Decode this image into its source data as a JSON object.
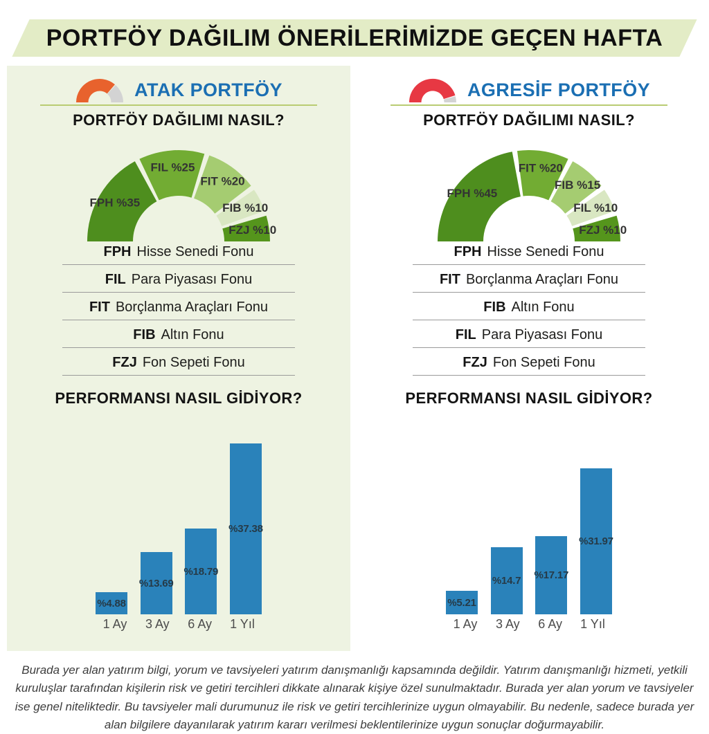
{
  "banner": {
    "title": "PORTFÖY DAĞILIM ÖNERİLERİMİZDE GEÇEN HAFTA"
  },
  "colors": {
    "banner_bg": "#e3ecc6",
    "panel_bg": "#eef3e2",
    "header_blue": "#1b6fb3",
    "divider": "#b9cc72",
    "bar_blue": "#2a82ba",
    "atak_gauge": "#e8622d",
    "agresif_gauge": "#e73843",
    "gauge_track": "#d3d3d3",
    "donut_palette": [
      "#4e8e1e",
      "#72ac33",
      "#a5cc71",
      "#d9e7c2",
      "#55951c"
    ]
  },
  "portfolios": [
    {
      "title": "ATAK PORTFÖY",
      "allocation_heading": "PORTFÖY DAĞILIMI NASIL?",
      "performance_heading": "PERFORMANSI NASIL GİDİYOR?",
      "gauge": {
        "filled_percent": 73,
        "fill_color": "#e8622d",
        "track_color": "#d3d3d3"
      },
      "legend": [
        {
          "code": "FPH",
          "name": "Hisse Senedi Fonu"
        },
        {
          "code": "FIL",
          "name": "Para Piyasası Fonu"
        },
        {
          "code": "FIT",
          "name": "Borçlanma Araçları Fonu"
        },
        {
          "code": "FIB",
          "name": "Altın Fonu"
        },
        {
          "code": "FZJ",
          "name": "Fon Sepeti Fonu"
        }
      ]
    },
    {
      "title": "AGRESİF PORTFÖY",
      "allocation_heading": "PORTFÖY DAĞILIMI NASIL?",
      "performance_heading": "PERFORMANSI NASIL GİDİYOR?",
      "gauge": {
        "filled_percent": 91,
        "fill_color": "#e73843",
        "track_color": "#d3d3d3"
      },
      "legend": [
        {
          "code": "FPH",
          "name": "Hisse Senedi Fonu"
        },
        {
          "code": "FIT",
          "name": "Borçlanma Araçları Fonu"
        },
        {
          "code": "FIB",
          "name": "Altın Fonu"
        },
        {
          "code": "FIL",
          "name": "Para Piyasası Fonu"
        },
        {
          "code": "FZJ",
          "name": "Fon Sepeti Fonu"
        }
      ]
    }
  ],
  "chart_data": [
    {
      "type": "pie",
      "subtype": "semi-donut",
      "portfolio": "ATAK PORTFÖY",
      "title": "PORTFÖY DAĞILIMI NASIL?",
      "segments": [
        {
          "label": "FPH %35",
          "code": "FPH",
          "value": 35,
          "color": "#4e8e1e"
        },
        {
          "label": "FIL %25",
          "code": "FIL",
          "value": 25,
          "color": "#72ac33"
        },
        {
          "label": "FIT %20",
          "code": "FIT",
          "value": 20,
          "color": "#a5cc71"
        },
        {
          "label": "FIB %10",
          "code": "FIB",
          "value": 10,
          "color": "#d9e7c2"
        },
        {
          "label": "FZJ %10",
          "code": "FZJ",
          "value": 10,
          "color": "#55951c"
        }
      ]
    },
    {
      "type": "pie",
      "subtype": "semi-donut",
      "portfolio": "AGRESİF PORTFÖY",
      "title": "PORTFÖY DAĞILIMI NASIL?",
      "segments": [
        {
          "label": "FPH %45",
          "code": "FPH",
          "value": 45,
          "color": "#4e8e1e"
        },
        {
          "label": "FIT %20",
          "code": "FIT",
          "value": 20,
          "color": "#72ac33"
        },
        {
          "label": "FIB %15",
          "code": "FIB",
          "value": 15,
          "color": "#a5cc71"
        },
        {
          "label": "FIL %10",
          "code": "FIL",
          "value": 10,
          "color": "#d9e7c2"
        },
        {
          "label": "FZJ %10",
          "code": "FZJ",
          "value": 10,
          "color": "#55951c"
        }
      ]
    },
    {
      "type": "bar",
      "portfolio": "ATAK PORTFÖY",
      "title": "PERFORMANSI NASIL GİDİYOR?",
      "categories": [
        "1 Ay",
        "3 Ay",
        "6 Ay",
        "1 Yıl"
      ],
      "values": [
        4.88,
        13.69,
        18.79,
        37.38
      ],
      "value_labels": [
        "%4.88",
        "%13.69",
        "%18.79",
        "%37.38"
      ],
      "unit": "%",
      "bar_color": "#2a82ba",
      "grid": false,
      "legend_position": "none"
    },
    {
      "type": "bar",
      "portfolio": "AGRESİF PORTFÖY",
      "title": "PERFORMANSI NASIL GİDİYOR?",
      "categories": [
        "1 Ay",
        "3 Ay",
        "6 Ay",
        "1 Yıl"
      ],
      "values": [
        5.21,
        14.7,
        17.17,
        31.97
      ],
      "value_labels": [
        "%5.21",
        "%14.7",
        "%17.17",
        "%31.97"
      ],
      "unit": "%",
      "bar_color": "#2a82ba",
      "grid": false,
      "legend_position": "none"
    }
  ],
  "disclaimer": "Burada yer alan yatırım bilgi, yorum ve tavsiyeleri yatırım danışmanlığı kapsamında değildir. Yatırım danışmanlığı hizmeti, yetkili kuruluşlar tarafından kişilerin risk ve getiri tercihleri dikkate alınarak kişiye özel sunulmaktadır. Burada yer alan yorum ve tavsiyeler ise genel niteliktedir. Bu tavsiyeler mali durumunuz ile risk ve getiri tercihlerinize uygun olmayabilir. Bu nedenle, sadece burada yer alan bilgilere dayanılarak yatırım kararı verilmesi beklentilerinize uygun sonuçlar doğurmayabilir."
}
